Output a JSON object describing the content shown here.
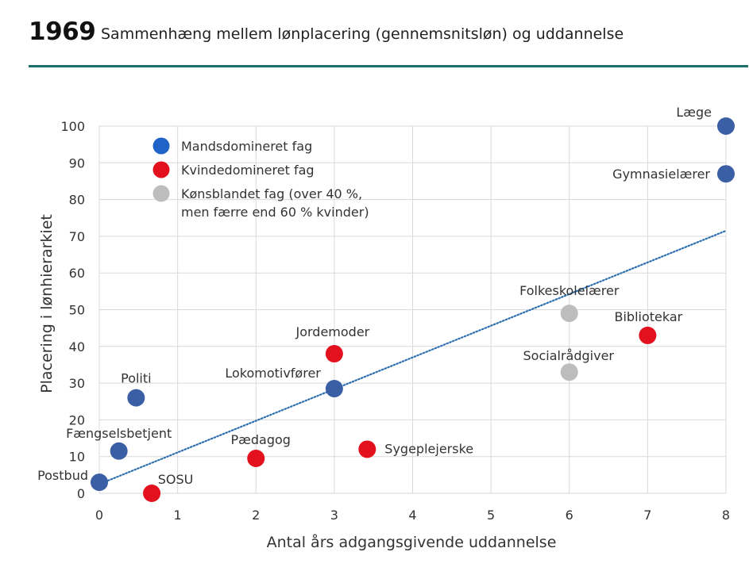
{
  "header": {
    "year": "1969",
    "title": "Sammenhæng mellem lønplacering (gennemsnitsløn) og uddannelse"
  },
  "colors": {
    "accent_rule": "#1e6f6a",
    "male_dominated": "#3a5fa5",
    "female_dominated": "#e3101e",
    "mixed": "#bdbdbd",
    "trendline": "#2e6fb0",
    "legend_male": "#1f63c6"
  },
  "chart_data": {
    "type": "scatter",
    "xlabel": "Antal års adgangsgivende uddannelse",
    "ylabel": "Placering i lønhierarkiet",
    "xlim": [
      0,
      8
    ],
    "ylim": [
      0,
      100
    ],
    "xticks": [
      0,
      1,
      2,
      3,
      4,
      5,
      6,
      7,
      8
    ],
    "yticks": [
      0,
      10,
      20,
      30,
      40,
      50,
      60,
      70,
      80,
      90,
      100
    ],
    "grid": true,
    "legend_position": "top-left",
    "legend": [
      {
        "key": "male",
        "label": "Mandsdomineret fag",
        "label2": ""
      },
      {
        "key": "female",
        "label": "Kvindedomineret fag",
        "label2": ""
      },
      {
        "key": "mixed",
        "label": "Kønsblandet fag (over 40 %,",
        "label2": "men færre end 60 % kvinder)"
      }
    ],
    "points": [
      {
        "label": "Læge",
        "x": 8.0,
        "y": 100,
        "group": "male"
      },
      {
        "label": "Gymnasielærer",
        "x": 8.0,
        "y": 87,
        "group": "male"
      },
      {
        "label": "Politi",
        "x": 0.47,
        "y": 26,
        "group": "male"
      },
      {
        "label": "Lokomotivfører",
        "x": 3.0,
        "y": 28.5,
        "group": "male"
      },
      {
        "label": "Fængselsbetjent",
        "x": 0.25,
        "y": 11.5,
        "group": "male"
      },
      {
        "label": "Postbud",
        "x": 0.0,
        "y": 3,
        "group": "male"
      },
      {
        "label": "Jordemoder",
        "x": 3.0,
        "y": 38,
        "group": "female"
      },
      {
        "label": "Bibliotekar",
        "x": 7.0,
        "y": 43,
        "group": "female"
      },
      {
        "label": "Pædagog",
        "x": 2.0,
        "y": 9.5,
        "group": "female"
      },
      {
        "label": "Sygeplejerske",
        "x": 3.42,
        "y": 12,
        "group": "female"
      },
      {
        "label": "SOSU",
        "x": 0.67,
        "y": 0,
        "group": "female"
      },
      {
        "label": "Folkeskolelærer",
        "x": 6.0,
        "y": 49,
        "group": "mixed"
      },
      {
        "label": "Socialrådgiver",
        "x": 6.0,
        "y": 33,
        "group": "mixed"
      }
    ],
    "trendline": {
      "x": [
        0,
        8
      ],
      "y": [
        2.5,
        71.5
      ],
      "style": "dotted"
    }
  }
}
